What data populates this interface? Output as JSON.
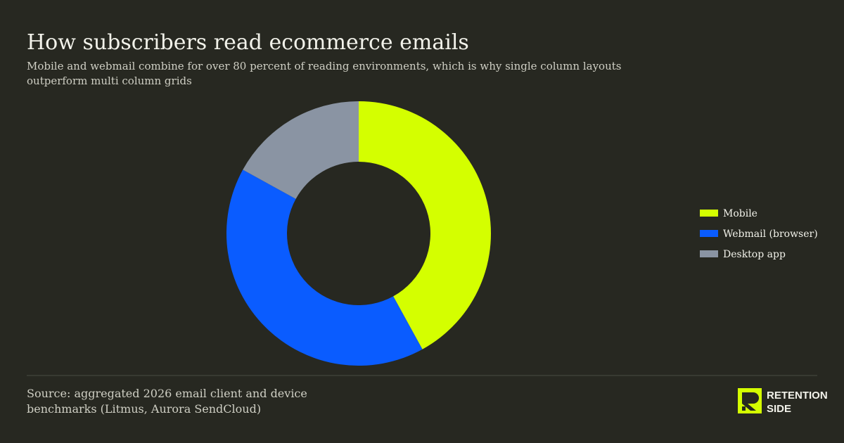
{
  "chart_data": {
    "type": "donut",
    "title": "How subscribers read ecommerce emails",
    "subtitle": [
      "Mobile and webmail combine for over 80 percent of reading environments, which is why single column layouts",
      "outperform multi column grids"
    ],
    "categories": [
      "Mobile",
      "Webmail (browser)",
      "Desktop app"
    ],
    "values": [
      42,
      41,
      17
    ],
    "colors": [
      "#d4ff00",
      "#0a5cff",
      "#8a94a3"
    ],
    "legend": "right",
    "source": [
      "Source: aggregated 2026 email client and device",
      "benchmarks (Litmus, Aurora SendCloud)"
    ]
  },
  "brand": [
    "RETENTION",
    "SIDE"
  ]
}
